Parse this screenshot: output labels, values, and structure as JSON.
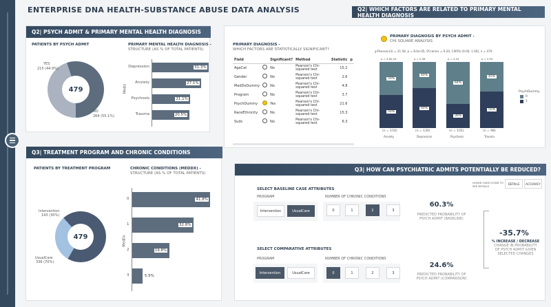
{
  "page": {
    "title": "ENTERPRISE DNA HEALTH-SUBSTANCE ABUSE DATA ANALYSIS"
  },
  "q2": {
    "header": "Q2| PSYCH ADMIT & PRIMARY MENTAL HEALTH DIAGNOSIS",
    "donut_title": "PATIENTS BY PSYCH ADMIT",
    "donut_total": "479",
    "donut_yes": {
      "label": "YES",
      "value": "215 (44.9%)",
      "fraction": 0.449
    },
    "donut_no": {
      "label": "NO",
      "value": "264 (55.1%)"
    },
    "bars_title": "PRIMARY MENTAL HEALTH DIAGNOSIS -",
    "bars_subtitle": "STRUCTURE (AS % OF TOTAL PATIENTS)",
    "bars_axis": "Medis",
    "bars": [
      {
        "label": "Depression",
        "value": "31.3%",
        "pct": 31.3
      },
      {
        "label": "Anxiety",
        "value": "27.1%",
        "pct": 27.1
      },
      {
        "label": "Psychosis",
        "value": "21.1%",
        "pct": 21.1
      },
      {
        "label": "Trauma",
        "value": "20.5%",
        "pct": 20.5
      }
    ]
  },
  "q2w": {
    "header": "Q2| WHICH FACTORS ARE RELATED TO PRIMARY MENTAL HEALTH DIAGNOSIS",
    "table_title": "PRIMARY DIAGNOSIS -",
    "table_subtitle": "WHICH FACTORS ARE STATISTICALLY SIGNIFICANT?",
    "cols": [
      "Field",
      "Significant?",
      "Method",
      "Statistic",
      "p"
    ],
    "rows": [
      {
        "field": "AgeCat",
        "sig": "No",
        "method": "Pearson's Chi-squared test",
        "stat": "15.2"
      },
      {
        "field": "Gender",
        "sig": "No",
        "method": "Pearson's Chi-squared test",
        "stat": "2.6"
      },
      {
        "field": "MedDxDummy",
        "sig": "No",
        "method": "Pearson's Chi-squared test",
        "stat": "4.8"
      },
      {
        "field": "Program",
        "sig": "No",
        "method": "Pearson's Chi-squared test",
        "stat": "3.7"
      },
      {
        "field": "PsychDummy",
        "sig": "Yes",
        "method": "Pearson's Chi-squared test",
        "stat": "21.6"
      },
      {
        "field": "RaceEthnicity",
        "sig": "No",
        "method": "Pearson's Chi-squared test",
        "stat": "15.3"
      },
      {
        "field": "Suds",
        "sig": "No",
        "method": "Pearson's Chi-squared test",
        "stat": "6.3"
      }
    ],
    "chi_title": "PRIMARY DIAGNOSIS BY PSYCH ADMIT -",
    "chi_subtitle": "CHI SQUARE ANALYSIS",
    "chi_stat": "χ²Pearson(3) = 21.58, p = 8.0e-05, V̂Cramer = 0.20, CI95% [0.00, 1.00], n = 479",
    "legend_title": "PsychDummy",
    "legend": [
      "0",
      "1"
    ],
    "columns": [
      {
        "top": "p = 9.8e-04",
        "upper": "50%",
        "lower": "50%",
        "upper_frac": 0.5,
        "n": "(n = 150)",
        "name": "Anxiety"
      },
      {
        "top": "p = 0.08",
        "upper": "40%",
        "lower": "60%",
        "upper_frac": 0.4,
        "n": "(n = 130)",
        "name": "Depression"
      },
      {
        "top": "p = 0.04",
        "upper": "64%",
        "lower": "36%",
        "upper_frac": 0.64,
        "n": "(n = 101)",
        "name": "Psychosis"
      },
      {
        "top": "p = 0.55",
        "upper": "45%",
        "lower": "55%",
        "upper_frac": 0.45,
        "n": "(n = 98)",
        "name": "Trauma"
      }
    ]
  },
  "q3": {
    "header": "Q3| TREATMENT PROGRAM AND CHRONIC CONDITIONS",
    "donut_title": "PATIENTS BY TREATMENT PROGRAM",
    "donut_total": "479",
    "intervention": {
      "label": "Intervention",
      "value": "143 (30%)",
      "fraction": 0.3
    },
    "usualcare": {
      "label": "UsualCare",
      "value": "336 (70%)"
    },
    "bars_title": "CHRONIC CONDITIONS (MEDDX) -",
    "bars_subtitle": "STRUCTURE (AS % OF TOTAL PATIENTS)",
    "bars_axis": "MedDx",
    "bars": [
      {
        "label": "0",
        "value": "41.8%",
        "pct": 41.8
      },
      {
        "label": "1",
        "value": "32.8%",
        "pct": 32.8
      },
      {
        "label": "2",
        "value": "19.8%",
        "pct": 19.8
      },
      {
        "label": "3",
        "value": "5.5%",
        "pct": 5.5
      }
    ]
  },
  "q3r": {
    "header": "Q3| HOW CAN PSYCHIATRIC ADMITS POTENTIALLY BE REDUCED?",
    "hint": "HOVER OVER ICONS TO SEE DETAILS",
    "details_btn": "DETAILS",
    "accuracy_btn": "ACCURACY",
    "baseline_title": "SELECT BASELINE CASE ATTRIBUTES",
    "comparative_title": "SELECT COMPARATIVE ATTRIBUTES",
    "program_label": "PROGRAM",
    "chronic_label": "NUMBER OF CHRONIC CONDITIONS",
    "programs": [
      "Intervention",
      "UsualCare"
    ],
    "conditions": [
      "0",
      "1",
      "2",
      "3"
    ],
    "baseline_pct": "60.3%",
    "baseline_caption": "PREDICTED PROBABILITY OF",
    "baseline_caption2": "PSYCH ADMIT (BASELINE)",
    "comparison_pct": "24.6%",
    "comparison_caption": "PREDICTED PROBABILITY OF",
    "comparison_caption2": "PSYCH ADMIT (COMPARISON)",
    "change_pct": "-35.7%",
    "change_caption1": "% INCREASE / DECREASE",
    "change_caption2": "CHANGE IN PROBABILITY",
    "change_caption3": "OF PSYCH ADMIT GIVEN",
    "change_caption4": "SELECTED CHANGES"
  }
}
